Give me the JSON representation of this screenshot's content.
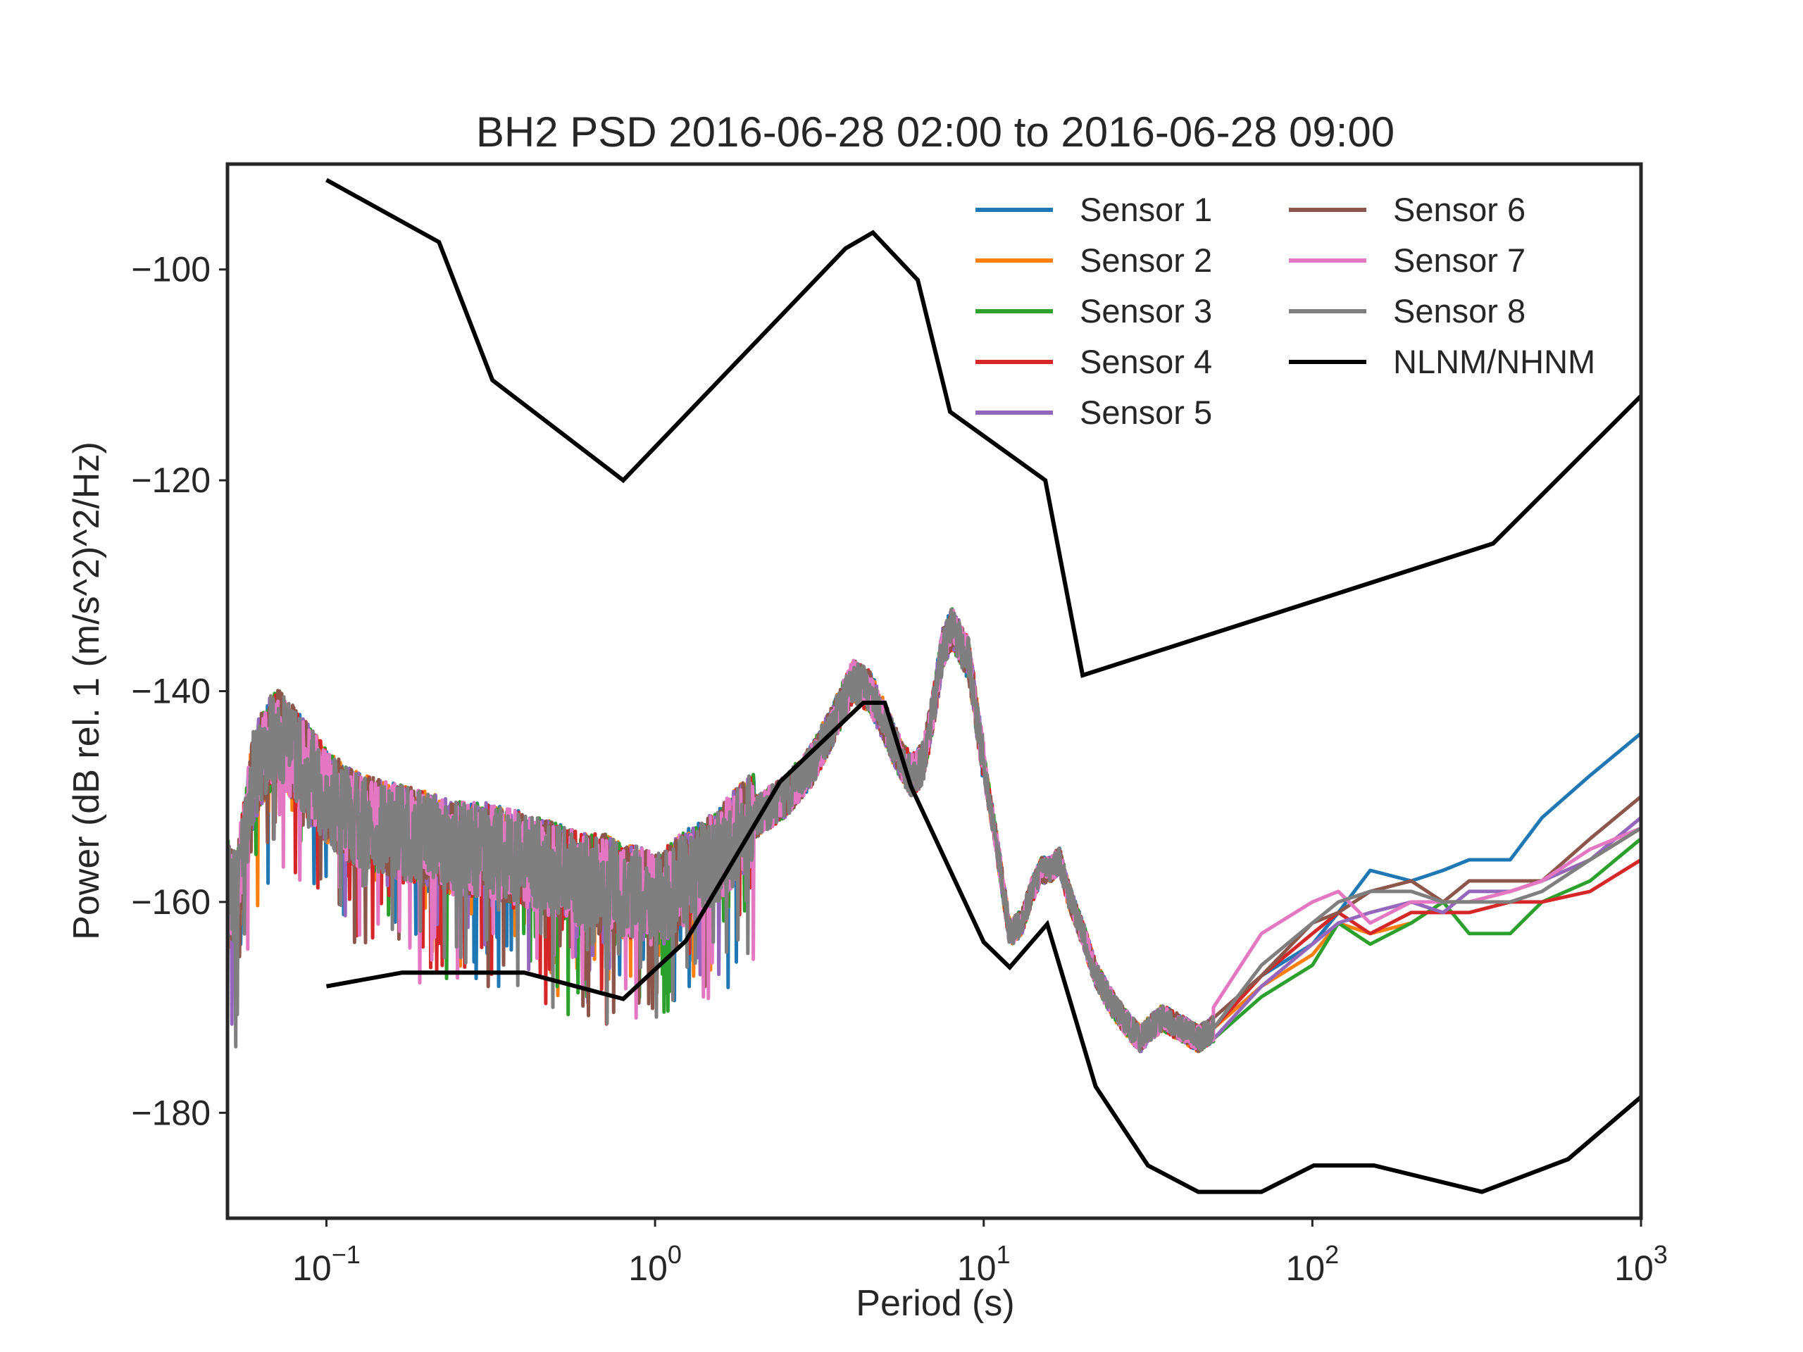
{
  "chart_data": {
    "type": "line",
    "title": "BH2 PSD 2016-06-28 02:00 to 2016-06-28 09:00",
    "xlabel": "Period (s)",
    "ylabel": "Power (dB rel. 1 (m/s^2)^2/Hz)",
    "x_scale": "log",
    "xlim": [
      0.05,
      1000
    ],
    "ylim": [
      -190,
      -90
    ],
    "x_ticks": [
      {
        "value": 0.1,
        "base": "10",
        "exp": "−1"
      },
      {
        "value": 1,
        "base": "10",
        "exp": "0"
      },
      {
        "value": 10,
        "base": "10",
        "exp": "1"
      },
      {
        "value": 100,
        "base": "10",
        "exp": "2"
      },
      {
        "value": 1000,
        "base": "10",
        "exp": "3"
      }
    ],
    "y_ticks": [
      {
        "value": -100,
        "label": "−100"
      },
      {
        "value": -120,
        "label": "−120"
      },
      {
        "value": -140,
        "label": "−140"
      },
      {
        "value": -160,
        "label": "−160"
      },
      {
        "value": -180,
        "label": "−180"
      }
    ],
    "grid": false,
    "legend": "top-right, two columns",
    "base_curve": {
      "x": [
        0.05,
        0.053,
        0.056,
        0.06,
        0.065,
        0.07,
        0.075,
        0.08,
        0.09,
        0.1,
        0.12,
        0.15,
        0.2,
        0.25,
        0.3,
        0.4,
        0.5,
        0.6,
        0.7,
        0.8,
        0.9,
        1.0,
        1.2,
        1.5,
        2.0,
        2.5,
        3.0,
        3.5,
        4.0,
        4.5,
        5.0,
        5.5,
        6.0,
        6.5,
        7.0,
        7.5,
        8.0,
        9.0,
        10,
        11,
        12,
        13,
        14,
        15,
        16,
        17,
        18,
        20,
        22,
        25,
        28,
        30,
        32,
        35,
        40,
        45,
        50,
        60,
        70,
        80,
        90,
        100,
        120,
        150,
        200,
        250,
        300,
        400,
        500,
        700,
        1000
      ],
      "y": [
        -158,
        -160,
        -155,
        -148,
        -146,
        -144,
        -145,
        -146,
        -148,
        -150,
        -152,
        -153,
        -154,
        -155,
        -155,
        -156,
        -157,
        -158,
        -158,
        -159,
        -159,
        -160,
        -158,
        -156,
        -152,
        -150,
        -147,
        -143,
        -139,
        -140,
        -143,
        -146,
        -148,
        -147,
        -142,
        -136,
        -134,
        -137,
        -147,
        -155,
        -163,
        -162,
        -159,
        -157,
        -157,
        -156,
        -159,
        -163,
        -167,
        -170,
        -172,
        -173,
        -172,
        -171,
        -172,
        -173,
        -172,
        -169,
        -167,
        -166,
        -165,
        -164,
        -162,
        -161,
        -160,
        -159,
        -158,
        -157,
        -156,
        -155,
        -153
      ]
    },
    "series": [
      {
        "name": "Sensor 1",
        "color": "#1f77b4",
        "low_freq": {
          "x": [
            50,
            70,
            100,
            120,
            150,
            200,
            250,
            300,
            400,
            500,
            700,
            1000
          ],
          "y": [
            -172,
            -167,
            -164,
            -161,
            -157,
            -158,
            -157,
            -156,
            -156,
            -152,
            -148,
            -144
          ]
        }
      },
      {
        "name": "Sensor 2",
        "color": "#ff7f0e",
        "low_freq": {
          "x": [
            50,
            70,
            100,
            120,
            150,
            200,
            250,
            300,
            400,
            500,
            700,
            1000
          ],
          "y": [
            -172,
            -168,
            -165,
            -162,
            -163,
            -162,
            -160,
            -160,
            -159,
            -158,
            -156,
            -153
          ]
        }
      },
      {
        "name": "Sensor 3",
        "color": "#2ca02c",
        "low_freq": {
          "x": [
            50,
            70,
            100,
            120,
            150,
            200,
            250,
            300,
            400,
            500,
            700,
            1000
          ],
          "y": [
            -173,
            -169,
            -166,
            -162,
            -164,
            -162,
            -160,
            -163,
            -163,
            -160,
            -158,
            -154
          ]
        }
      },
      {
        "name": "Sensor 4",
        "color": "#d62728",
        "low_freq": {
          "x": [
            50,
            70,
            100,
            120,
            150,
            200,
            250,
            300,
            400,
            500,
            700,
            1000
          ],
          "y": [
            -172,
            -167,
            -163,
            -161,
            -163,
            -161,
            -161,
            -161,
            -160,
            -160,
            -159,
            -156
          ]
        }
      },
      {
        "name": "Sensor 5",
        "color": "#9467bd",
        "low_freq": {
          "x": [
            50,
            70,
            100,
            120,
            150,
            200,
            250,
            300,
            400,
            500,
            700,
            1000
          ],
          "y": [
            -173,
            -168,
            -164,
            -162,
            -161,
            -160,
            -161,
            -159,
            -159,
            -158,
            -156,
            -152
          ]
        }
      },
      {
        "name": "Sensor 6",
        "color": "#8c564b",
        "low_freq": {
          "x": [
            50,
            70,
            100,
            120,
            150,
            200,
            250,
            300,
            400,
            500,
            700,
            1000
          ],
          "y": [
            -171,
            -167,
            -162,
            -161,
            -159,
            -158,
            -160,
            -158,
            -158,
            -158,
            -154,
            -150
          ]
        }
      },
      {
        "name": "Sensor 7",
        "color": "#e377c2",
        "low_freq": {
          "x": [
            50,
            70,
            100,
            120,
            150,
            200,
            250,
            300,
            400,
            500,
            700,
            1000
          ],
          "y": [
            -170,
            -163,
            -160,
            -159,
            -162,
            -160,
            -160,
            -160,
            -159,
            -158,
            -155,
            -153
          ]
        }
      },
      {
        "name": "Sensor 8",
        "color": "#7f7f7f",
        "low_freq": {
          "x": [
            50,
            70,
            100,
            120,
            150,
            200,
            250,
            300,
            400,
            500,
            700,
            1000
          ],
          "y": [
            -172,
            -166,
            -162,
            -160,
            -159,
            -159,
            -160,
            -160,
            -160,
            -159,
            -156,
            -153
          ]
        }
      }
    ],
    "reference_model": {
      "name": "NLNM/NHNM",
      "color": "#000000",
      "nhnm": {
        "x": [
          0.1,
          0.22,
          0.32,
          0.8,
          3.8,
          4.6,
          6.3,
          7.9,
          15.4,
          20,
          354.8,
          1000
        ],
        "y": [
          -91.5,
          -97.4,
          -110.5,
          -120.0,
          -98.0,
          -96.5,
          -101.0,
          -113.5,
          -120.0,
          -138.5,
          -126.0,
          -112
        ]
      },
      "nlnm": {
        "x": [
          0.1,
          0.17,
          0.4,
          0.8,
          1.24,
          2.4,
          4.3,
          5.0,
          6.0,
          10.0,
          12.0,
          15.6,
          21.9,
          31.6,
          45,
          70,
          101,
          154,
          328,
          600,
          1000
        ],
        "y": [
          -168.0,
          -166.7,
          -166.7,
          -169.2,
          -163.7,
          -148.6,
          -141.1,
          -141.1,
          -149.0,
          -163.8,
          -166.2,
          -162.1,
          -177.5,
          -185.0,
          -187.5,
          -187.5,
          -185.0,
          -185.0,
          -187.5,
          -184.4,
          -178.5
        ]
      }
    }
  }
}
